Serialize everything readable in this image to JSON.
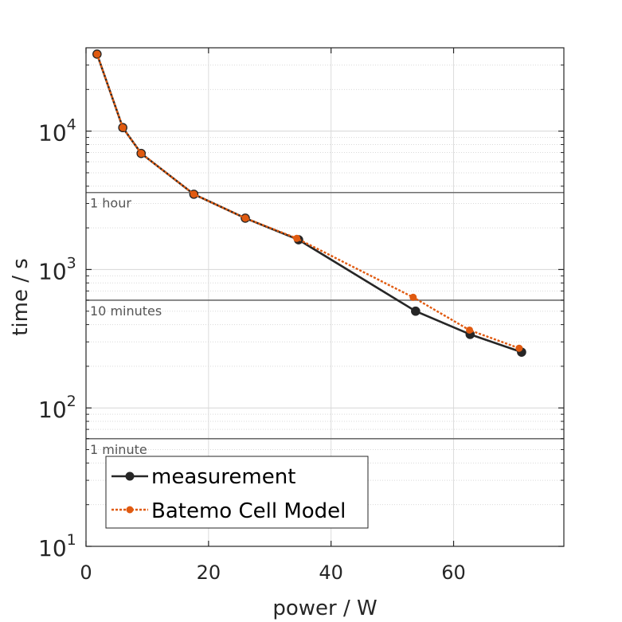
{
  "chart_data": {
    "type": "line",
    "xlabel": "power / W",
    "ylabel": "time / s",
    "xlim": [
      0,
      78
    ],
    "ylim": [
      10,
      40000
    ],
    "yscale": "log",
    "grid": true,
    "x_ticks": [
      0,
      20,
      40,
      60
    ],
    "x_tick_labels": [
      "0",
      "20",
      "40",
      "60"
    ],
    "y_ticks": [
      10,
      100,
      1000,
      10000
    ],
    "y_tick_labels": [
      {
        "base": "10",
        "exp": "1"
      },
      {
        "base": "10",
        "exp": "2"
      },
      {
        "base": "10",
        "exp": "3"
      },
      {
        "base": "10",
        "exp": "4"
      }
    ],
    "reference_lines": [
      {
        "y": 3600,
        "label": "1 hour"
      },
      {
        "y": 600,
        "label": "10 minutes"
      },
      {
        "y": 60,
        "label": "1 minute"
      }
    ],
    "legend_position": "bottom-left",
    "series": [
      {
        "name": "measurement",
        "color": "#262626",
        "style": "solid",
        "points": [
          [
            1.8,
            36000
          ],
          [
            6.0,
            10600
          ],
          [
            9.0,
            6900
          ],
          [
            17.6,
            3500
          ],
          [
            26.0,
            2350
          ],
          [
            34.7,
            1640
          ],
          [
            53.8,
            500
          ],
          [
            62.7,
            340
          ],
          [
            71.1,
            253
          ]
        ]
      },
      {
        "name": "Batemo Cell Model",
        "color": "#e05a10",
        "style": "dotted",
        "points": [
          [
            1.8,
            36000
          ],
          [
            6.0,
            10600
          ],
          [
            9.0,
            6900
          ],
          [
            17.6,
            3500
          ],
          [
            26.0,
            2350
          ],
          [
            34.4,
            1680
          ],
          [
            53.4,
            630
          ],
          [
            62.6,
            365
          ],
          [
            70.7,
            270
          ]
        ]
      }
    ]
  }
}
